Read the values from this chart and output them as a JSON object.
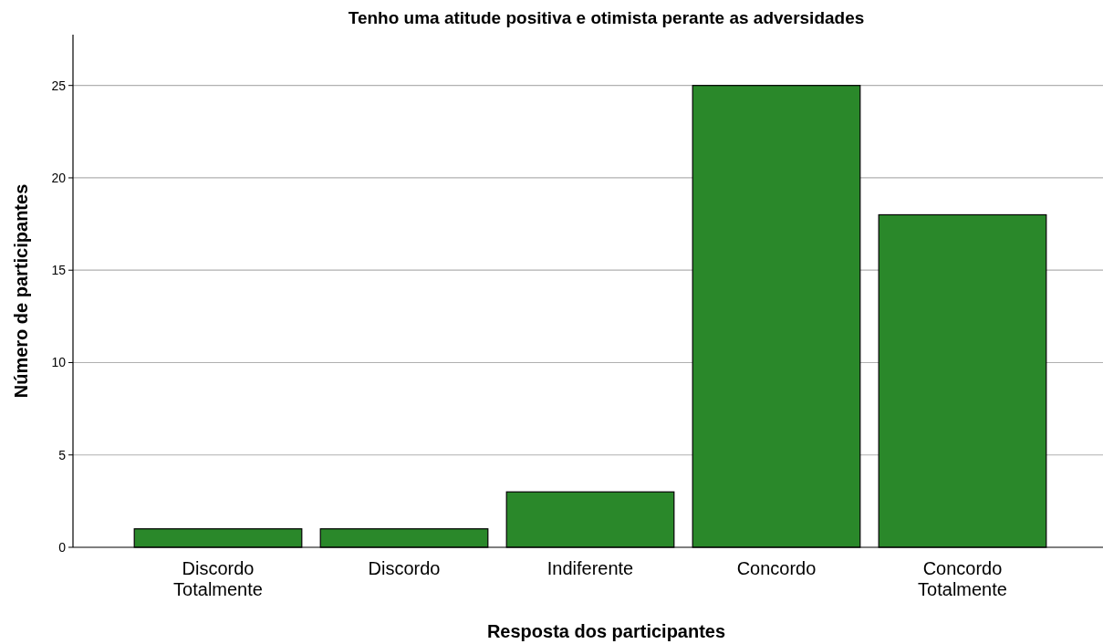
{
  "chart_data": {
    "type": "bar",
    "title": "Tenho uma atitude positiva e otimista perante as adversidades",
    "xlabel": "Resposta dos participantes",
    "ylabel": "Número de participantes",
    "categories": [
      "Discordo Totalmente",
      "Discordo",
      "Indiferente",
      "Concordo",
      "Concordo Totalmente"
    ],
    "values": [
      1,
      1,
      3,
      25,
      18
    ],
    "color": "#2a882a",
    "ylim": [
      0,
      27.75
    ],
    "yticks": [
      0,
      5,
      10,
      15,
      20,
      25
    ],
    "grid": "y"
  }
}
